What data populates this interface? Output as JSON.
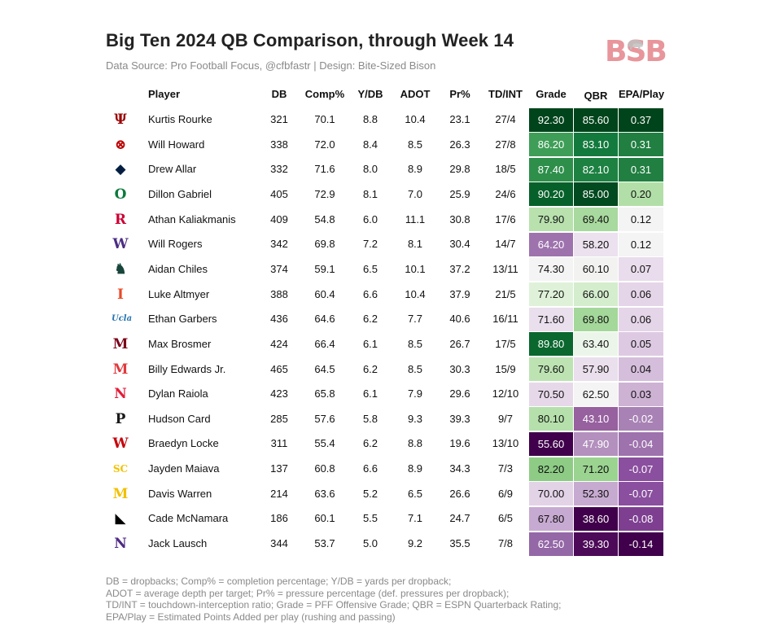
{
  "title": "Big Ten 2024 QB Comparison, through Week 14",
  "subtitle": "Data Source: Pro Football Focus, @cfbfastr | Design: Bite-Sized Bison",
  "logo": {
    "text": "BSB",
    "icon": "bison-icon",
    "color": "#e8959b"
  },
  "chart_data": {
    "type": "table",
    "columns": [
      "Player",
      "DB",
      "Comp%",
      "Y/DB",
      "ADOT",
      "Pr%",
      "TD/INT",
      "Grade",
      "QBR",
      "EPA/Play"
    ],
    "heat_columns": [
      "Grade",
      "QBR",
      "EPA/Play"
    ],
    "color_scale": {
      "low": "#40004b",
      "mid": "#f7f7f7",
      "high": "#00441b"
    },
    "rows": [
      {
        "team_icon": "indiana-logo-icon",
        "team_color": "#990000",
        "team_glyph": "Ψ",
        "player": "Kurtis Rourke",
        "db": "321",
        "comp": "70.1",
        "ydb": "8.8",
        "adot": "10.4",
        "pr": "23.1",
        "tdint": "27/4",
        "grade": "92.30",
        "qbr": "85.60",
        "epa": "0.37",
        "grade_bg": "#00441b",
        "qbr_bg": "#00441b",
        "epa_bg": "#00441b",
        "grade_fg": "#ffffff",
        "qbr_fg": "#ffffff",
        "epa_fg": "#ffffff"
      },
      {
        "team_icon": "ohio-state-logo-icon",
        "team_color": "#bb0000",
        "team_glyph": "⊗",
        "player": "Will Howard",
        "db": "338",
        "comp": "72.0",
        "ydb": "8.4",
        "adot": "8.5",
        "pr": "26.3",
        "tdint": "27/8",
        "grade": "86.20",
        "qbr": "83.10",
        "epa": "0.31",
        "grade_bg": "#3e9e57",
        "qbr_bg": "#137a3e",
        "epa_bg": "#217f41",
        "grade_fg": "#ffffff",
        "qbr_fg": "#ffffff",
        "epa_fg": "#ffffff"
      },
      {
        "team_icon": "penn-state-logo-icon",
        "team_color": "#041e42",
        "team_glyph": "◆",
        "player": "Drew Allar",
        "db": "332",
        "comp": "71.6",
        "ydb": "8.0",
        "adot": "8.9",
        "pr": "29.8",
        "tdint": "18/5",
        "grade": "87.40",
        "qbr": "82.10",
        "epa": "0.31",
        "grade_bg": "#2e8f4b",
        "qbr_bg": "#1d8142",
        "epa_bg": "#217f41",
        "grade_fg": "#ffffff",
        "qbr_fg": "#ffffff",
        "epa_fg": "#ffffff"
      },
      {
        "team_icon": "oregon-logo-icon",
        "team_color": "#0b7a3b",
        "team_glyph": "O",
        "player": "Dillon Gabriel",
        "db": "405",
        "comp": "72.9",
        "ydb": "8.1",
        "adot": "7.0",
        "pr": "25.9",
        "tdint": "24/6",
        "grade": "90.20",
        "qbr": "85.00",
        "epa": "0.20",
        "grade_bg": "#06602a",
        "qbr_bg": "#024a1f",
        "epa_bg": "#b2dfa8",
        "grade_fg": "#ffffff",
        "qbr_fg": "#ffffff",
        "epa_fg": "#111111"
      },
      {
        "team_icon": "rutgers-logo-icon",
        "team_color": "#cc0033",
        "team_glyph": "R",
        "player": "Athan Kaliakmanis",
        "db": "409",
        "comp": "54.8",
        "ydb": "6.0",
        "adot": "11.1",
        "pr": "30.8",
        "tdint": "17/6",
        "grade": "79.90",
        "qbr": "69.40",
        "epa": "0.12",
        "grade_bg": "#b8e1ae",
        "qbr_bg": "#a8d99e",
        "epa_bg": "#f4f4f4",
        "grade_fg": "#111111",
        "qbr_fg": "#111111",
        "epa_fg": "#111111"
      },
      {
        "team_icon": "washington-logo-icon",
        "team_color": "#4b2e83",
        "team_glyph": "W",
        "player": "Will Rogers",
        "db": "342",
        "comp": "69.8",
        "ydb": "7.2",
        "adot": "8.1",
        "pr": "30.4",
        "tdint": "14/7",
        "grade": "64.20",
        "qbr": "58.20",
        "epa": "0.12",
        "grade_bg": "#9e73ad",
        "qbr_bg": "#ece1ee",
        "epa_bg": "#f4f4f4",
        "grade_fg": "#ffffff",
        "qbr_fg": "#111111",
        "epa_fg": "#111111"
      },
      {
        "team_icon": "michigan-state-logo-icon",
        "team_color": "#18453b",
        "team_glyph": "♞",
        "player": "Aidan Chiles",
        "db": "374",
        "comp": "59.1",
        "ydb": "6.5",
        "adot": "10.1",
        "pr": "37.2",
        "tdint": "13/11",
        "grade": "74.30",
        "qbr": "60.10",
        "epa": "0.07",
        "grade_bg": "#f4f4f4",
        "qbr_bg": "#f2f2f0",
        "epa_bg": "#e9dcec",
        "grade_fg": "#111111",
        "qbr_fg": "#111111",
        "epa_fg": "#111111"
      },
      {
        "team_icon": "illinois-logo-icon",
        "team_color": "#e84a27",
        "team_glyph": "I",
        "player": "Luke Altmyer",
        "db": "388",
        "comp": "60.4",
        "ydb": "6.6",
        "adot": "10.4",
        "pr": "37.9",
        "tdint": "21/5",
        "grade": "77.20",
        "qbr": "66.00",
        "epa": "0.06",
        "grade_bg": "#dff2d9",
        "qbr_bg": "#d4edcd",
        "epa_bg": "#e5d5e8",
        "grade_fg": "#111111",
        "qbr_fg": "#111111",
        "epa_fg": "#111111"
      },
      {
        "team_icon": "ucla-logo-icon",
        "team_color": "#2774ae",
        "team_glyph": "Ucla",
        "player": "Ethan Garbers",
        "db": "436",
        "comp": "64.6",
        "ydb": "6.2",
        "adot": "7.7",
        "pr": "40.6",
        "tdint": "16/11",
        "grade": "71.60",
        "qbr": "69.80",
        "epa": "0.06",
        "grade_bg": "#eadfed",
        "qbr_bg": "#a4d79a",
        "epa_bg": "#e5d5e8",
        "grade_fg": "#111111",
        "qbr_fg": "#111111",
        "epa_fg": "#111111"
      },
      {
        "team_icon": "minnesota-logo-icon",
        "team_color": "#7a0019",
        "team_glyph": "M",
        "player": "Max Brosmer",
        "db": "424",
        "comp": "66.4",
        "ydb": "6.1",
        "adot": "8.5",
        "pr": "26.7",
        "tdint": "17/5",
        "grade": "89.80",
        "qbr": "63.40",
        "epa": "0.05",
        "grade_bg": "#0a672e",
        "qbr_bg": "#ecf5e9",
        "epa_bg": "#ddcae2",
        "grade_fg": "#ffffff",
        "qbr_fg": "#111111",
        "epa_fg": "#111111"
      },
      {
        "team_icon": "maryland-logo-icon",
        "team_color": "#e03a3e",
        "team_glyph": "M",
        "player": "Billy Edwards Jr.",
        "db": "465",
        "comp": "64.5",
        "ydb": "6.2",
        "adot": "8.5",
        "pr": "30.3",
        "tdint": "15/9",
        "grade": "79.60",
        "qbr": "57.90",
        "epa": "0.04",
        "grade_bg": "#bde3b3",
        "qbr_bg": "#eadfec",
        "epa_bg": "#d5bedb",
        "grade_fg": "#111111",
        "qbr_fg": "#111111",
        "epa_fg": "#111111"
      },
      {
        "team_icon": "nebraska-logo-icon",
        "team_color": "#e41c38",
        "team_glyph": "N",
        "player": "Dylan Raiola",
        "db": "423",
        "comp": "65.8",
        "ydb": "6.1",
        "adot": "7.9",
        "pr": "29.6",
        "tdint": "12/10",
        "grade": "70.50",
        "qbr": "62.50",
        "epa": "0.03",
        "grade_bg": "#e6d8e9",
        "qbr_bg": "#f4f4f4",
        "epa_bg": "#cdb2d4",
        "grade_fg": "#111111",
        "qbr_fg": "#111111",
        "epa_fg": "#111111"
      },
      {
        "team_icon": "purdue-logo-icon",
        "team_color": "#1a1a1a",
        "team_glyph": "P",
        "player": "Hudson Card",
        "db": "285",
        "comp": "57.6",
        "ydb": "5.8",
        "adot": "9.3",
        "pr": "39.3",
        "tdint": "9/7",
        "grade": "80.10",
        "qbr": "43.10",
        "epa": "-0.02",
        "grade_bg": "#b5e0ab",
        "qbr_bg": "#97609f",
        "epa_bg": "#a882b5",
        "grade_fg": "#111111",
        "qbr_fg": "#ffffff",
        "epa_fg": "#ffffff"
      },
      {
        "team_icon": "wisconsin-logo-icon",
        "team_color": "#c5050c",
        "team_glyph": "W",
        "player": "Braedyn Locke",
        "db": "311",
        "comp": "55.4",
        "ydb": "6.2",
        "adot": "8.8",
        "pr": "19.6",
        "tdint": "13/10",
        "grade": "55.60",
        "qbr": "47.90",
        "epa": "-0.04",
        "grade_bg": "#40004b",
        "qbr_bg": "#b390bd",
        "epa_bg": "#9e72ad",
        "grade_fg": "#ffffff",
        "qbr_fg": "#ffffff",
        "epa_fg": "#ffffff"
      },
      {
        "team_icon": "usc-logo-icon",
        "team_color": "#f2c200",
        "team_glyph": "SC",
        "player": "Jayden Maiava",
        "db": "137",
        "comp": "60.8",
        "ydb": "6.6",
        "adot": "8.9",
        "pr": "34.3",
        "tdint": "7/3",
        "grade": "82.20",
        "qbr": "71.20",
        "epa": "-0.07",
        "grade_bg": "#8ecc86",
        "qbr_bg": "#9bd391",
        "epa_bg": "#8a4f9e",
        "grade_fg": "#111111",
        "qbr_fg": "#111111",
        "epa_fg": "#ffffff"
      },
      {
        "team_icon": "michigan-logo-icon",
        "team_color": "#f2c000",
        "team_glyph": "M",
        "player": "Davis Warren",
        "db": "214",
        "comp": "63.6",
        "ydb": "5.2",
        "adot": "6.5",
        "pr": "26.6",
        "tdint": "6/9",
        "grade": "70.00",
        "qbr": "52.30",
        "epa": "-0.07",
        "grade_bg": "#e3d3e7",
        "qbr_bg": "#c7aad0",
        "epa_bg": "#8a4f9e",
        "grade_fg": "#111111",
        "qbr_fg": "#111111",
        "epa_fg": "#ffffff"
      },
      {
        "team_icon": "iowa-logo-icon",
        "team_color": "#000000",
        "team_glyph": "◣",
        "player": "Cade McNamara",
        "db": "186",
        "comp": "60.1",
        "ydb": "5.5",
        "adot": "7.1",
        "pr": "24.7",
        "tdint": "6/5",
        "grade": "67.80",
        "qbr": "38.60",
        "epa": "-0.08",
        "grade_bg": "#c7aad1",
        "qbr_bg": "#40004b",
        "epa_bg": "#7e3f91",
        "grade_fg": "#111111",
        "qbr_fg": "#ffffff",
        "epa_fg": "#ffffff"
      },
      {
        "team_icon": "northwestern-logo-icon",
        "team_color": "#4e2a84",
        "team_glyph": "N",
        "player": "Jack Lausch",
        "db": "344",
        "comp": "53.7",
        "ydb": "5.0",
        "adot": "9.2",
        "pr": "35.5",
        "tdint": "7/8",
        "grade": "62.50",
        "qbr": "39.30",
        "epa": "-0.14",
        "grade_bg": "#9467a6",
        "qbr_bg": "#4d0a59",
        "epa_bg": "#40004b",
        "grade_fg": "#ffffff",
        "qbr_fg": "#ffffff",
        "epa_fg": "#ffffff"
      }
    ]
  },
  "footer": [
    "DB = dropbacks; Comp% = completion percentage; Y/DB = yards per dropback;",
    "ADOT = average depth per target; Pr% = pressure percentage (def. pressures per dropback);",
    "TD/INT = touchdown-interception ratio; Grade = PFF Offensive Grade; QBR = ESPN Quarterback Rating;",
    "EPA/Play = Estimated Points Added per play (rushing and passing)"
  ]
}
